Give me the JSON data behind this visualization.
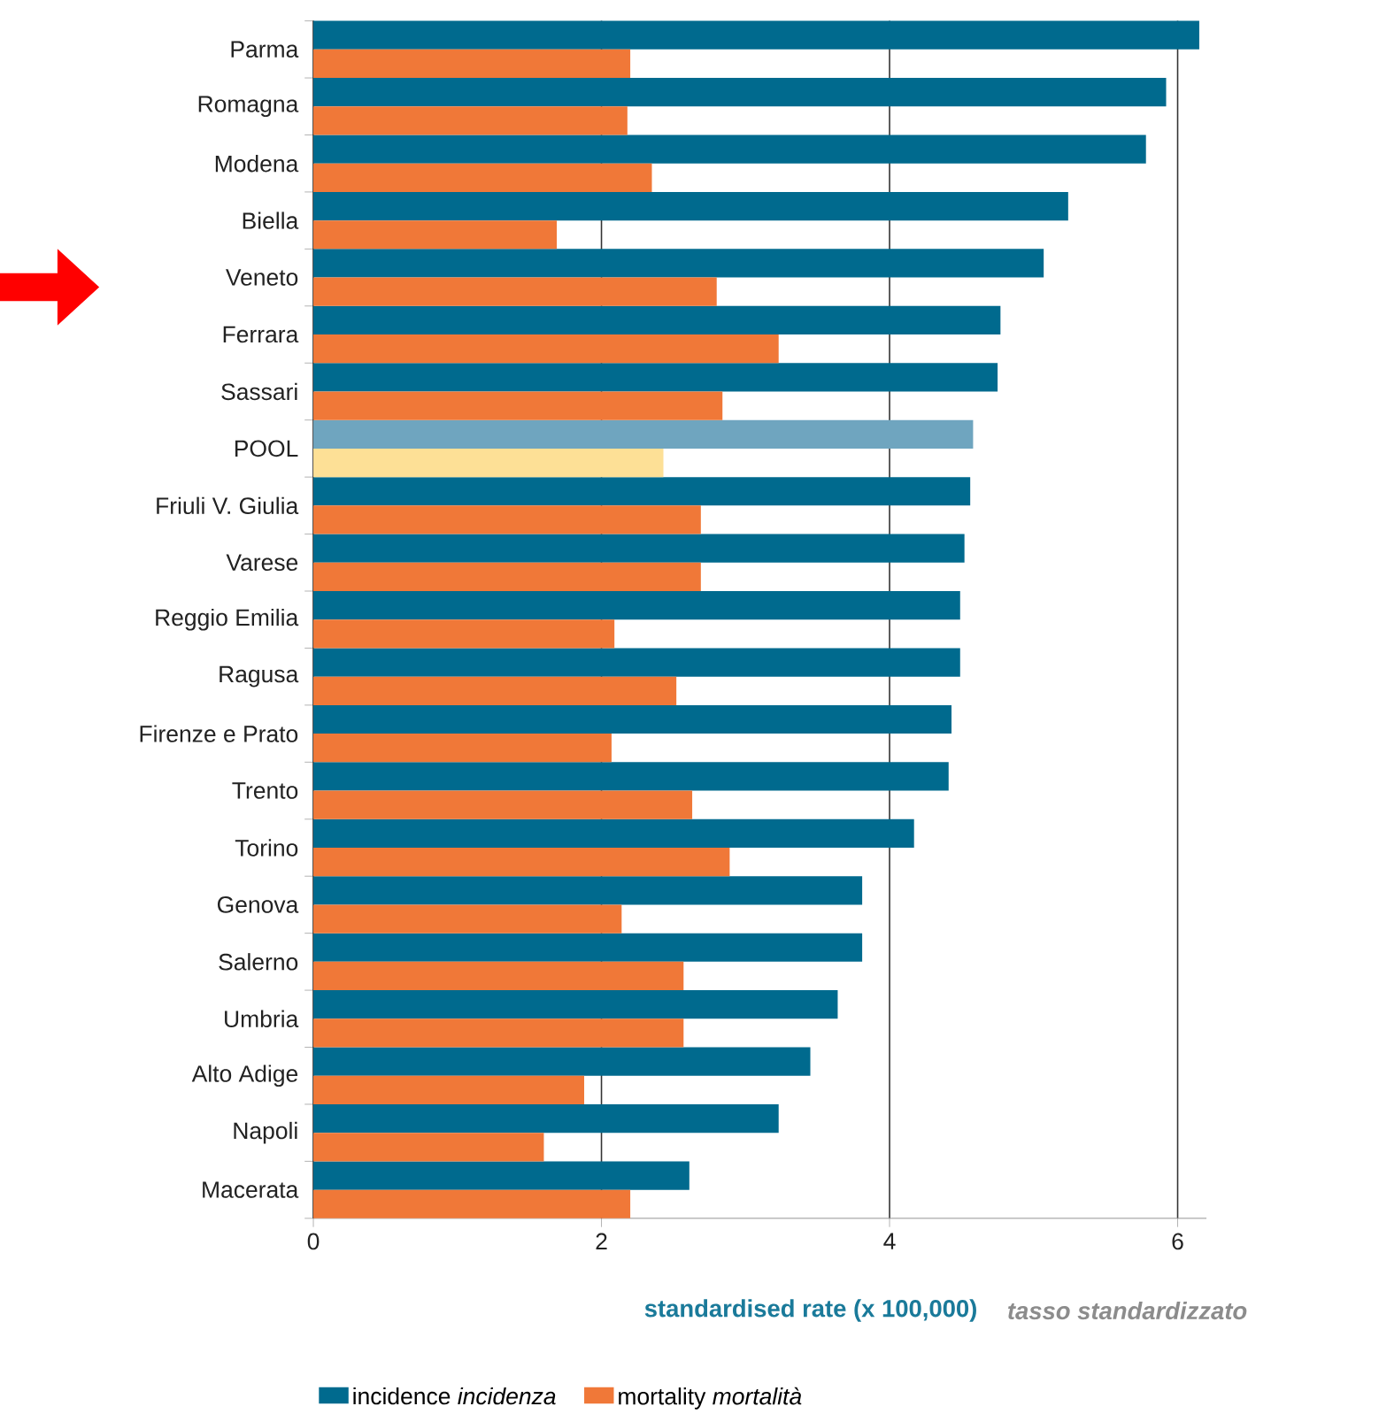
{
  "chart_data": {
    "type": "bar",
    "orientation": "horizontal",
    "xlabel": "standardised rate (x 100,000)",
    "annotations": [
      "tasso standardizzato"
    ],
    "categories": [
      "Parma",
      "Romagna",
      "Modena",
      "Biella",
      "Veneto",
      "Ferrara",
      "Sassari",
      "POOL",
      "Friuli V. Giulia",
      "Varese",
      "Reggio Emilia",
      "Ragusa",
      "Firenze e Prato",
      "Trento",
      "Torino",
      "Genova",
      "Salerno",
      "Umbria",
      "Alto Adige",
      "Napoli",
      "Macerata"
    ],
    "series": [
      {
        "name": "incidence *incidenza*",
        "color": "#006a8e",
        "colors": [
          "#006a8e",
          "#006a8e",
          "#006a8e",
          "#006a8e",
          "#006a8e",
          "#006a8e",
          "#006a8e",
          "#6fa5bf",
          "#006a8e",
          "#006a8e",
          "#006a8e",
          "#006a8e",
          "#006a8e",
          "#006a8e",
          "#006a8e",
          "#006a8e",
          "#006a8e",
          "#006a8e",
          "#006a8e",
          "#006a8e",
          "#006a8e"
        ],
        "values": [
          6.15,
          5.92,
          5.78,
          5.24,
          5.07,
          4.77,
          4.75,
          4.58,
          4.56,
          4.52,
          4.49,
          4.49,
          4.43,
          4.41,
          4.17,
          3.81,
          3.81,
          3.64,
          3.45,
          3.23,
          2.61
        ]
      },
      {
        "name": "mortality *mortalità*",
        "color": "#f07838",
        "colors": [
          "#f07838",
          "#f07838",
          "#f07838",
          "#f07838",
          "#f07838",
          "#f07838",
          "#f07838",
          "#fde096",
          "#f07838",
          "#f07838",
          "#f07838",
          "#f07838",
          "#f07838",
          "#f07838",
          "#f07838",
          "#f07838",
          "#f07838",
          "#f07838",
          "#f07838",
          "#f07838",
          "#f07838"
        ],
        "values": [
          2.2,
          2.18,
          2.35,
          1.69,
          2.8,
          3.23,
          2.84,
          2.43,
          2.69,
          2.69,
          2.09,
          2.52,
          2.07,
          2.63,
          2.89,
          2.14,
          2.57,
          2.57,
          1.88,
          1.6,
          2.2
        ]
      }
    ],
    "xlim": [
      0,
      6.2
    ],
    "xticks": [
      0,
      2,
      4,
      6
    ],
    "grid": "x",
    "legend": "bottom"
  }
}
